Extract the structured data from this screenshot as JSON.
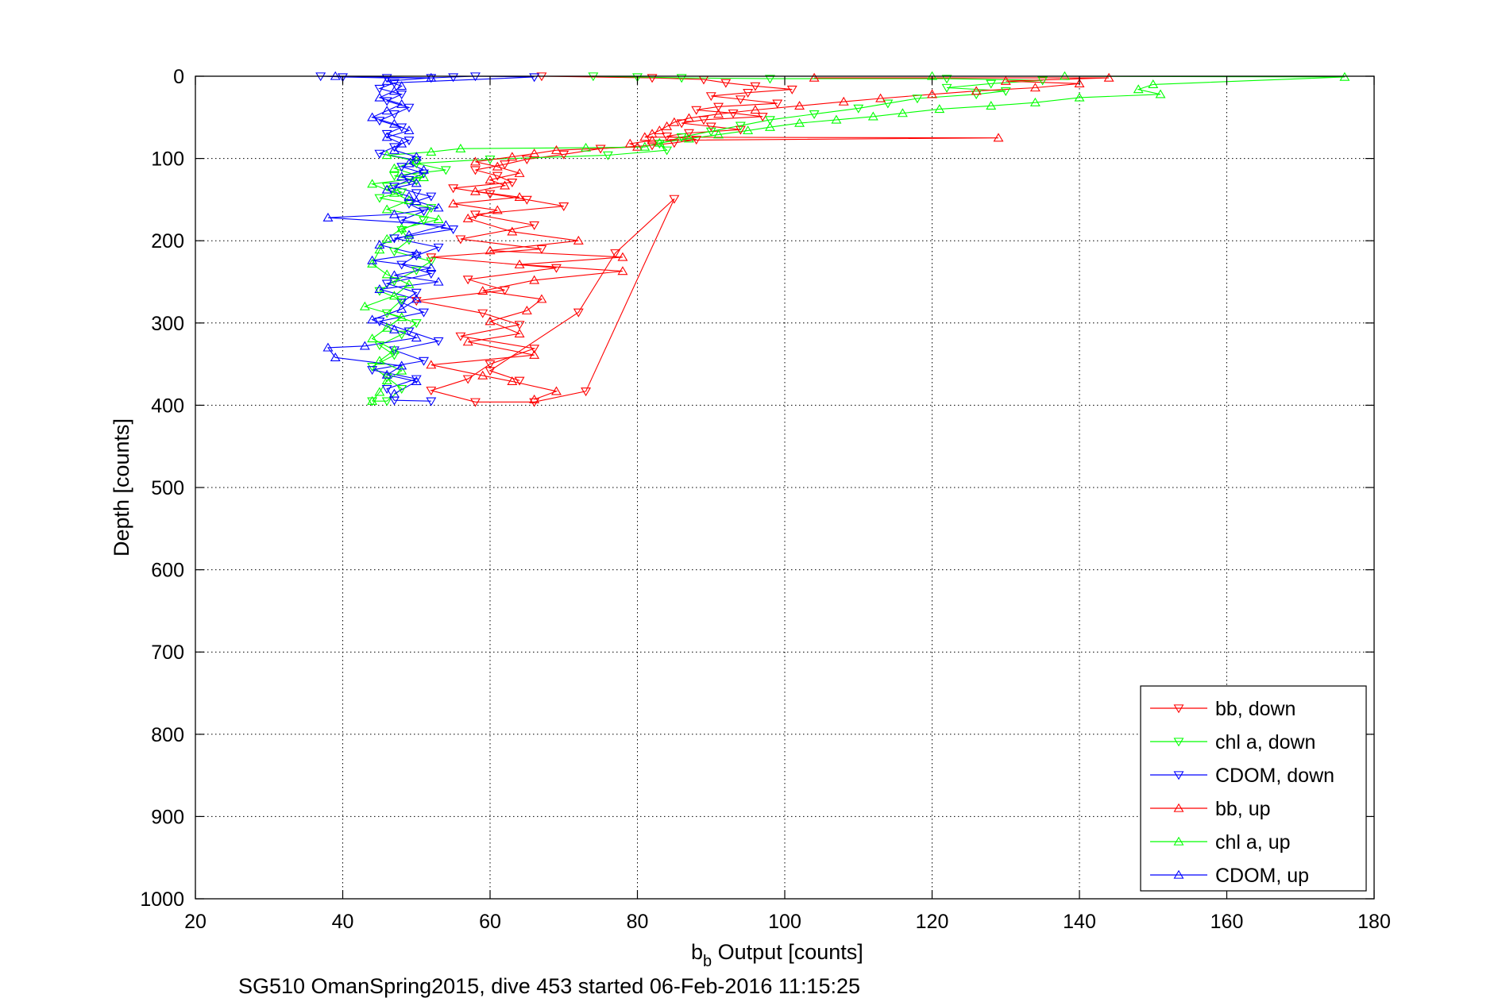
{
  "chart_data": {
    "type": "scatter",
    "xlabel_main": "b",
    "xlabel_sub": "b",
    "xlabel_rest": " Output [counts]",
    "ylabel": "Depth [counts]",
    "caption": "SG510 OmanSpring2015, dive 453 started 06-Feb-2016 11:15:25",
    "xlim": [
      20,
      180
    ],
    "ylim": [
      0,
      1000
    ],
    "y_reversed": true,
    "grid": true,
    "legend_placement": "bottom-right",
    "x_ticks": [
      20,
      40,
      60,
      80,
      100,
      120,
      140,
      160,
      180
    ],
    "y_ticks": [
      0,
      100,
      200,
      300,
      400,
      500,
      600,
      700,
      800,
      900,
      1000
    ],
    "series": [
      {
        "name": "bb, down",
        "color": "#ff0000",
        "marker": "triangle-down",
        "points": [
          [
            67,
            0
          ],
          [
            82,
            2
          ],
          [
            89,
            4
          ],
          [
            92,
            8
          ],
          [
            96,
            12
          ],
          [
            101,
            16
          ],
          [
            95,
            20
          ],
          [
            90,
            24
          ],
          [
            94,
            28
          ],
          [
            99,
            33
          ],
          [
            91,
            37
          ],
          [
            88,
            41
          ],
          [
            93,
            45
          ],
          [
            97,
            49
          ],
          [
            89,
            53
          ],
          [
            86,
            57
          ],
          [
            90,
            61
          ],
          [
            94,
            65
          ],
          [
            87,
            69
          ],
          [
            84,
            73
          ],
          [
            88,
            77
          ],
          [
            85,
            81
          ],
          [
            82,
            84
          ],
          [
            75,
            88
          ],
          [
            70,
            95
          ],
          [
            65,
            101
          ],
          [
            62,
            107
          ],
          [
            58,
            114
          ],
          [
            61,
            121
          ],
          [
            63,
            129
          ],
          [
            55,
            136
          ],
          [
            60,
            143
          ],
          [
            65,
            150
          ],
          [
            70,
            158
          ],
          [
            58,
            168
          ],
          [
            66,
            181
          ],
          [
            56,
            198
          ],
          [
            67,
            210
          ],
          [
            52,
            220
          ],
          [
            69,
            233
          ],
          [
            57,
            247
          ],
          [
            62,
            260
          ],
          [
            50,
            273
          ],
          [
            59,
            288
          ],
          [
            64,
            302
          ],
          [
            56,
            316
          ],
          [
            66,
            331
          ],
          [
            60,
            350
          ],
          [
            57,
            368
          ],
          [
            52,
            382
          ],
          [
            58,
            396
          ],
          [
            66,
            396
          ],
          [
            73,
            383
          ],
          [
            85,
            149
          ],
          [
            77,
            215
          ],
          [
            72,
            287
          ],
          [
            60,
            358
          ],
          [
            64,
            370
          ]
        ]
      },
      {
        "name": "chl a, down",
        "color": "#00ff00",
        "marker": "triangle-down",
        "points": [
          [
            74,
            0
          ],
          [
            80,
            1
          ],
          [
            86,
            2
          ],
          [
            98,
            3
          ],
          [
            122,
            3
          ],
          [
            135,
            5
          ],
          [
            128,
            9
          ],
          [
            122,
            14
          ],
          [
            130,
            18
          ],
          [
            126,
            22
          ],
          [
            118,
            27
          ],
          [
            114,
            33
          ],
          [
            110,
            39
          ],
          [
            104,
            46
          ],
          [
            98,
            53
          ],
          [
            94,
            60
          ],
          [
            90,
            67
          ],
          [
            86,
            74
          ],
          [
            83,
            82
          ],
          [
            84,
            90
          ],
          [
            76,
            96
          ],
          [
            60,
            101
          ],
          [
            50,
            106
          ],
          [
            54,
            114
          ],
          [
            47,
            121
          ],
          [
            50,
            127
          ],
          [
            46,
            134
          ],
          [
            48,
            141
          ],
          [
            45,
            148
          ],
          [
            52,
            160
          ],
          [
            51,
            175
          ],
          [
            48,
            187
          ],
          [
            49,
            199
          ],
          [
            47,
            213
          ],
          [
            52,
            225
          ],
          [
            50,
            236
          ],
          [
            47,
            249
          ],
          [
            45,
            261
          ],
          [
            48,
            272
          ],
          [
            46,
            288
          ],
          [
            50,
            300
          ],
          [
            48,
            314
          ],
          [
            45,
            327
          ],
          [
            47,
            339
          ],
          [
            44,
            353
          ],
          [
            46,
            366
          ],
          [
            48,
            380
          ],
          [
            46,
            395
          ],
          [
            44,
            395
          ]
        ]
      },
      {
        "name": "CDOM, down",
        "color": "#0000ff",
        "marker": "triangle-down",
        "points": [
          [
            37,
            0
          ],
          [
            40,
            1
          ],
          [
            46,
            2
          ],
          [
            52,
            2
          ],
          [
            55,
            1
          ],
          [
            58,
            0
          ],
          [
            66,
            1
          ],
          [
            47,
            8
          ],
          [
            45,
            15
          ],
          [
            48,
            22
          ],
          [
            46,
            30
          ],
          [
            49,
            38
          ],
          [
            47,
            46
          ],
          [
            45,
            54
          ],
          [
            48,
            62
          ],
          [
            46,
            70
          ],
          [
            49,
            78
          ],
          [
            47,
            86
          ],
          [
            45,
            94
          ],
          [
            50,
            102
          ],
          [
            48,
            110
          ],
          [
            51,
            118
          ],
          [
            49,
            126
          ],
          [
            47,
            134
          ],
          [
            50,
            142
          ],
          [
            52,
            146
          ],
          [
            49,
            155
          ],
          [
            51,
            164
          ],
          [
            48,
            175
          ],
          [
            55,
            186
          ],
          [
            47,
            197
          ],
          [
            53,
            208
          ],
          [
            50,
            218
          ],
          [
            48,
            229
          ],
          [
            52,
            240
          ],
          [
            46,
            252
          ],
          [
            50,
            263
          ],
          [
            48,
            275
          ],
          [
            51,
            287
          ],
          [
            45,
            298
          ],
          [
            49,
            310
          ],
          [
            53,
            322
          ],
          [
            47,
            333
          ],
          [
            51,
            346
          ],
          [
            44,
            357
          ],
          [
            50,
            368
          ],
          [
            46,
            380
          ],
          [
            47,
            394
          ],
          [
            52,
            395
          ]
        ]
      },
      {
        "name": "bb, up",
        "color": "#ff0000",
        "marker": "triangle-up",
        "points": [
          [
            104,
            2
          ],
          [
            144,
            2
          ],
          [
            130,
            6
          ],
          [
            140,
            9
          ],
          [
            134,
            14
          ],
          [
            126,
            18
          ],
          [
            120,
            22
          ],
          [
            113,
            27
          ],
          [
            108,
            31
          ],
          [
            102,
            36
          ],
          [
            96,
            41
          ],
          [
            91,
            46
          ],
          [
            87,
            51
          ],
          [
            85,
            56
          ],
          [
            84,
            61
          ],
          [
            83,
            66
          ],
          [
            82,
            70
          ],
          [
            81,
            74
          ],
          [
            129,
            75
          ],
          [
            82,
            78
          ],
          [
            79,
            82
          ],
          [
            80,
            86
          ],
          [
            69,
            90
          ],
          [
            66,
            94
          ],
          [
            63,
            98
          ],
          [
            58,
            104
          ],
          [
            61,
            110
          ],
          [
            64,
            118
          ],
          [
            60,
            126
          ],
          [
            62,
            133
          ],
          [
            58,
            140
          ],
          [
            64,
            147
          ],
          [
            55,
            155
          ],
          [
            61,
            163
          ],
          [
            57,
            173
          ],
          [
            63,
            189
          ],
          [
            72,
            200
          ],
          [
            60,
            212
          ],
          [
            78,
            220
          ],
          [
            64,
            229
          ],
          [
            78,
            237
          ],
          [
            66,
            248
          ],
          [
            59,
            261
          ],
          [
            67,
            271
          ],
          [
            65,
            285
          ],
          [
            60,
            298
          ],
          [
            64,
            313
          ],
          [
            57,
            323
          ],
          [
            66,
            339
          ],
          [
            52,
            351
          ],
          [
            59,
            364
          ],
          [
            63,
            371
          ],
          [
            69,
            383
          ],
          [
            66,
            393
          ]
        ]
      },
      {
        "name": "chl a, up",
        "color": "#00ff00",
        "marker": "triangle-up",
        "points": [
          [
            120,
            0
          ],
          [
            138,
            0
          ],
          [
            176,
            1
          ],
          [
            150,
            10
          ],
          [
            148,
            16
          ],
          [
            151,
            22
          ],
          [
            140,
            26
          ],
          [
            134,
            32
          ],
          [
            128,
            36
          ],
          [
            121,
            40
          ],
          [
            116,
            45
          ],
          [
            112,
            49
          ],
          [
            107,
            53
          ],
          [
            102,
            57
          ],
          [
            98,
            62
          ],
          [
            95,
            66
          ],
          [
            91,
            71
          ],
          [
            87,
            76
          ],
          [
            83,
            81
          ],
          [
            81,
            86
          ],
          [
            73,
            87
          ],
          [
            56,
            88
          ],
          [
            52,
            92
          ],
          [
            46,
            96
          ],
          [
            50,
            103
          ],
          [
            47,
            112
          ],
          [
            51,
            123
          ],
          [
            44,
            131
          ],
          [
            47,
            142
          ],
          [
            49,
            151
          ],
          [
            46,
            162
          ],
          [
            53,
            174
          ],
          [
            48,
            185
          ],
          [
            46,
            198
          ],
          [
            45,
            211
          ],
          [
            44,
            228
          ],
          [
            46,
            241
          ],
          [
            49,
            253
          ],
          [
            47,
            267
          ],
          [
            43,
            280
          ],
          [
            48,
            293
          ],
          [
            46,
            306
          ],
          [
            44,
            319
          ],
          [
            47,
            333
          ],
          [
            45,
            346
          ],
          [
            48,
            358
          ],
          [
            46,
            370
          ],
          [
            45,
            384
          ],
          [
            44,
            395
          ]
        ]
      },
      {
        "name": "CDOM, up",
        "color": "#0000ff",
        "marker": "triangle-up",
        "points": [
          [
            39,
            0
          ],
          [
            52,
            2
          ],
          [
            46,
            6
          ],
          [
            48,
            12
          ],
          [
            47,
            18
          ],
          [
            45,
            26
          ],
          [
            48,
            34
          ],
          [
            46,
            42
          ],
          [
            44,
            50
          ],
          [
            47,
            58
          ],
          [
            49,
            66
          ],
          [
            46,
            74
          ],
          [
            48,
            82
          ],
          [
            47,
            90
          ],
          [
            50,
            98
          ],
          [
            49,
            106
          ],
          [
            51,
            114
          ],
          [
            48,
            122
          ],
          [
            50,
            130
          ],
          [
            46,
            138
          ],
          [
            49,
            146
          ],
          [
            50,
            152
          ],
          [
            53,
            160
          ],
          [
            47,
            168
          ],
          [
            38,
            172
          ],
          [
            54,
            181
          ],
          [
            49,
            193
          ],
          [
            45,
            205
          ],
          [
            50,
            216
          ],
          [
            44,
            224
          ],
          [
            52,
            233
          ],
          [
            47,
            242
          ],
          [
            53,
            250
          ],
          [
            45,
            259
          ],
          [
            50,
            271
          ],
          [
            48,
            283
          ],
          [
            44,
            296
          ],
          [
            47,
            308
          ],
          [
            50,
            318
          ],
          [
            43,
            328
          ],
          [
            38,
            330
          ],
          [
            39,
            342
          ],
          [
            48,
            352
          ],
          [
            46,
            363
          ],
          [
            50,
            371
          ],
          [
            47,
            386
          ]
        ]
      }
    ]
  }
}
